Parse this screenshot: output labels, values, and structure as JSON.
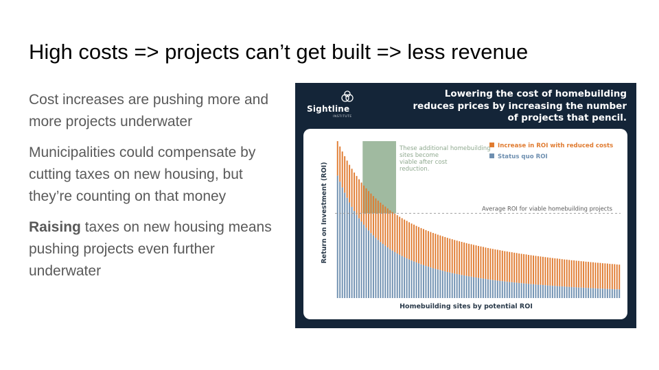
{
  "slide": {
    "title": "High costs => projects can’t get built => less revenue",
    "bullets": [
      {
        "text": "Cost increases are pushing more and more projects underwater"
      },
      {
        "text": "Municipalities could compensate by cutting taxes on new housing, but they’re counting on that money"
      },
      {
        "bold": "Raising",
        "text": " taxes on new housing means pushing projects even further underwater"
      }
    ]
  },
  "figure": {
    "logo": {
      "name": "Sightline",
      "sub": "INSTITUTE"
    },
    "title": "Lowering the cost of homebuilding reduces prices by increasing the number of projects that pencil.",
    "colors": {
      "background": "#142538",
      "increase": "#e07b30",
      "status_quo": "#6e8fb0",
      "highlight": "#8fae8f",
      "average": "#9e9e9e"
    }
  },
  "chart_data": {
    "type": "bar",
    "stacked": true,
    "xlabel": "Homebuilding sites by potential ROI",
    "ylabel": "Return on Investment (ROI)",
    "axis_numbers_shown": false,
    "x": "sites ranked by potential ROI (highest to lowest)",
    "site_count": 119,
    "ylim": [
      0,
      100
    ],
    "status_quo_roi": [
      78,
      74.1,
      70.5,
      67.1,
      63.9,
      60.9,
      58.1,
      55.5,
      53.1,
      50.8,
      48.7,
      46.7,
      44.8,
      43.1,
      41.4,
      39.9,
      38.4,
      37,
      35.7,
      34.5,
      33.3,
      32.3,
      31.2,
      30.2,
      29.3,
      28.4,
      27.6,
      26.8,
      26,
      25.3,
      24.6,
      23.9,
      23.3,
      22.7,
      22.1,
      21.5,
      21,
      20.5,
      20,
      19.5,
      19,
      18.6,
      18.2,
      17.8,
      17.4,
      17,
      16.6,
      16.3,
      15.9,
      15.6,
      15.3,
      15,
      14.7,
      14.4,
      14.1,
      13.8,
      13.6,
      13.3,
      13.1,
      12.8,
      12.6,
      12.4,
      12.2,
      11.9,
      11.7,
      11.5,
      11.3,
      11.1,
      10.9,
      10.8,
      10.6,
      10.4,
      10.2,
      10.1,
      9.9,
      9.8,
      9.6,
      9.5,
      9.3,
      9.2,
      9,
      8.9,
      8.8,
      8.6,
      8.5,
      8.4,
      8.3,
      8.2,
      8,
      7.9,
      7.8,
      7.7,
      7.6,
      7.5,
      7.4,
      7.3,
      7.2,
      7.1,
      7,
      6.9,
      6.8,
      6.7,
      6.7,
      6.6,
      6.5,
      6.4,
      6.3,
      6.3,
      6.2,
      6.1,
      6,
      6,
      5.9,
      5.8,
      5.8,
      5.7,
      5.6,
      5.6,
      5.5
    ],
    "reduced_cost_roi": [
      100,
      96.6,
      93.4,
      90.4,
      87.6,
      84.9,
      82.4,
      80,
      77.8,
      75.7,
      73.6,
      71.7,
      69.9,
      68.2,
      66.6,
      65,
      63.5,
      62.1,
      60.8,
      59.5,
      58.3,
      57.1,
      55.9,
      54.8,
      53.8,
      52.8,
      51.8,
      50.9,
      50,
      49.2,
      48.3,
      47.5,
      46.8,
      46,
      45.3,
      44.6,
      44,
      43.3,
      42.7,
      42.1,
      41.5,
      41,
      40.4,
      39.9,
      39.4,
      38.9,
      38.4,
      37.9,
      37.5,
      37,
      36.6,
      36.2,
      35.8,
      35.4,
      35,
      34.6,
      34.3,
      33.9,
      33.6,
      33.2,
      32.9,
      32.6,
      32.2,
      31.9,
      31.6,
      31.3,
      31,
      30.8,
      30.5,
      30.2,
      29.9,
      29.7,
      29.4,
      29.2,
      28.9,
      28.7,
      28.4,
      28.2,
      28,
      27.8,
      27.5,
      27.3,
      27.1,
      26.9,
      26.7,
      26.5,
      26.3,
      26.1,
      25.9,
      25.7,
      25.5,
      25.3,
      25.2,
      25,
      24.8,
      24.6,
      24.5,
      24.3,
      24.1,
      24,
      23.8,
      23.7,
      23.5,
      23.4,
      23.2,
      23.1,
      22.9,
      22.8,
      22.6,
      22.5,
      22.4,
      22.2,
      22.1,
      22,
      21.8,
      21.7,
      21.6,
      21.4,
      21.3
    ],
    "series": [
      {
        "name": "Increase in ROI with reduced costs",
        "color": "#e07b30"
      },
      {
        "name": "Status quo ROI",
        "color": "#6e8fb0"
      }
    ],
    "reference_line": {
      "label": "Average ROI for viable homebuilding projects",
      "y": 54
    },
    "annotation": {
      "text": "These additional homebuilding sites become viable after cost reduction.",
      "x_range": [
        11,
        25
      ]
    },
    "legend_position": "top-right",
    "grid": false
  }
}
